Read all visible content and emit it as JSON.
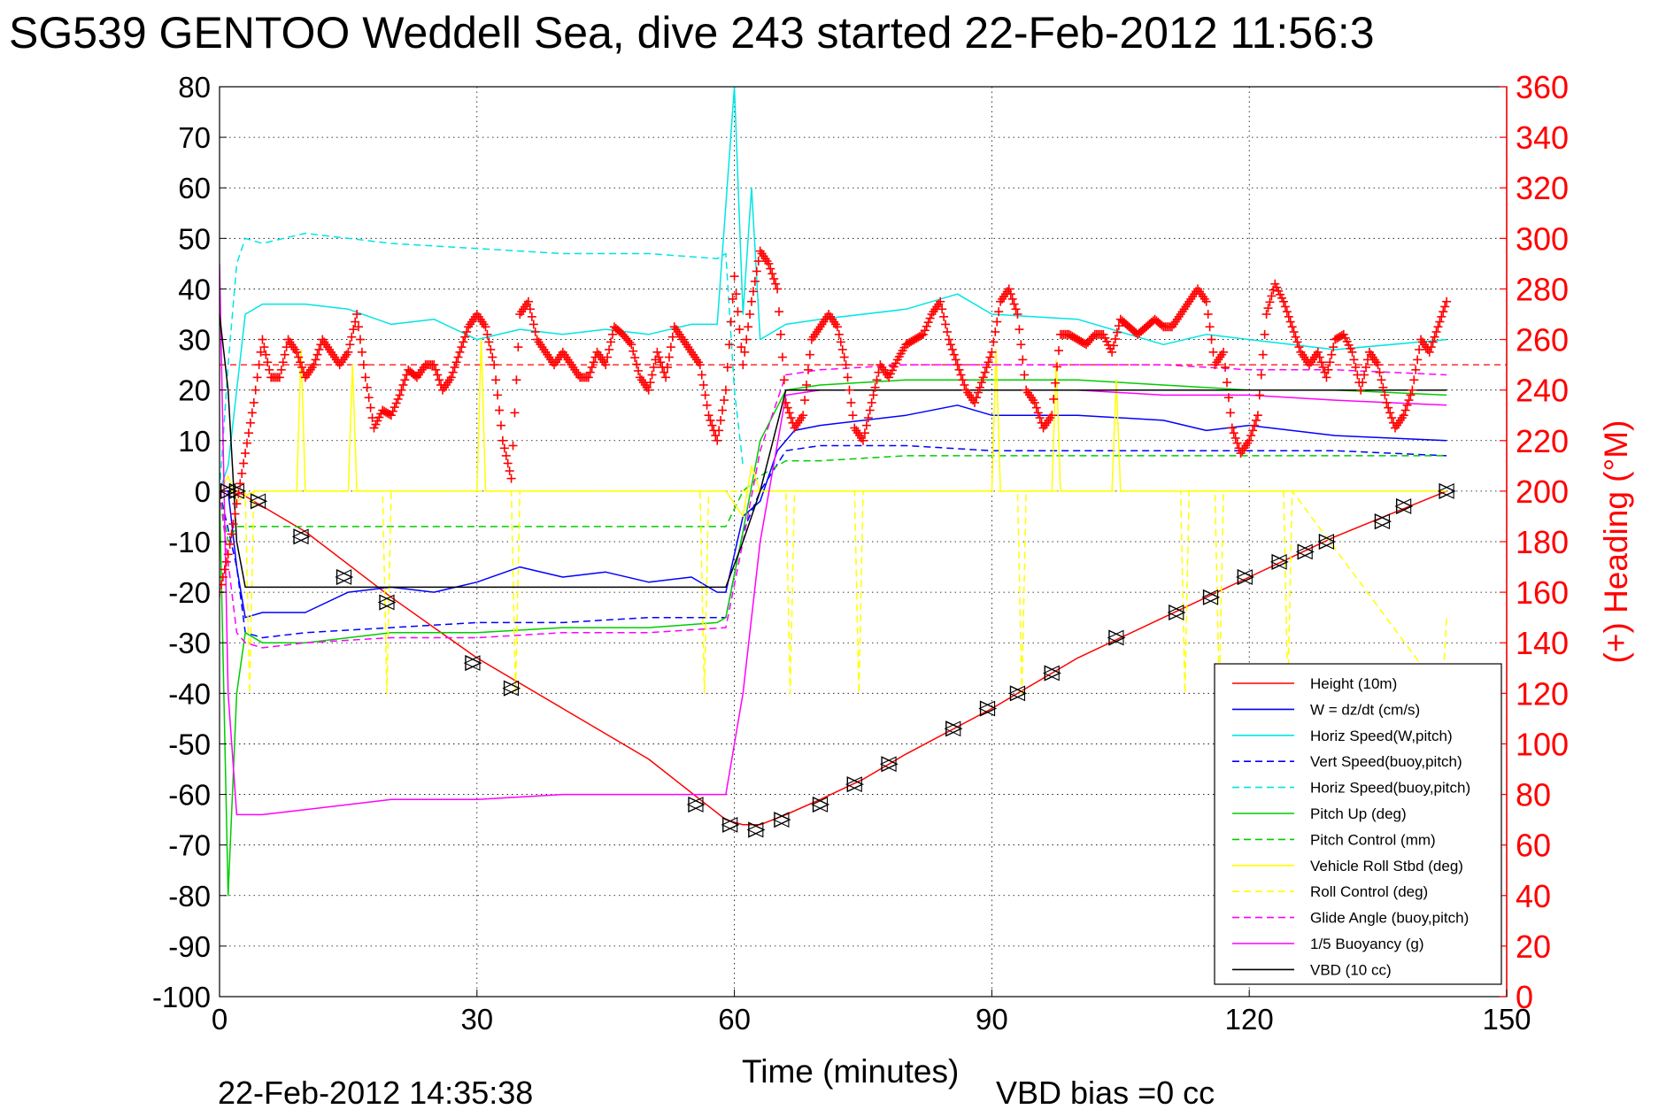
{
  "chart_data": {
    "type": "line",
    "title": "SG539 GENTOO Weddell Sea, dive 243 started 22-Feb-2012 11:56:3",
    "xlabel": "Time (minutes)",
    "ylabel_right": "(+) Heading (°M)",
    "xlim": [
      0,
      150
    ],
    "ylim": [
      -100,
      80
    ],
    "ylim_right": [
      0,
      360
    ],
    "x_ticks": [
      "0",
      "30",
      "60",
      "90",
      "120",
      "150"
    ],
    "y_ticks": [
      "80",
      "70",
      "60",
      "50",
      "40",
      "30",
      "20",
      "10",
      "0",
      "-10",
      "-20",
      "-30",
      "-40",
      "-50",
      "-60",
      "-70",
      "-80",
      "-90",
      "-100"
    ],
    "y_ticks_right": [
      "360",
      "340",
      "320",
      "300",
      "280",
      "260",
      "240",
      "220",
      "200",
      "180",
      "160",
      "140",
      "120",
      "100",
      "80",
      "60",
      "40",
      "20",
      "0"
    ],
    "grid": "on (dotted)",
    "legend_position": "bottom-right",
    "footer_left": "22-Feb-2012 14:35:38",
    "footer_right": "VBD bias =0 cc",
    "series": [
      {
        "name": "Height (10m)",
        "color": "#ff0000",
        "style": "solid",
        "x": [
          0,
          2,
          10,
          20,
          30,
          40,
          50,
          56,
          59,
          61,
          63,
          66,
          70,
          75,
          80,
          90,
          100,
          110,
          120,
          130,
          143
        ],
        "y": [
          0,
          0,
          -8,
          -21,
          -33,
          -43,
          -53,
          -61,
          -65,
          -66,
          -66,
          -64,
          -61,
          -57,
          -52,
          -43,
          -33,
          -25,
          -17,
          -9,
          0
        ]
      },
      {
        "name": "W = dz/dt (cm/s)",
        "color": "#0000ff",
        "style": "solid",
        "x": [
          0,
          1,
          2,
          3,
          5,
          10,
          15,
          20,
          25,
          30,
          35,
          40,
          45,
          50,
          55,
          58,
          59,
          61,
          63,
          65,
          67,
          70,
          80,
          86,
          90,
          100,
          110,
          115,
          120,
          130,
          143
        ],
        "y": [
          0,
          0,
          -15,
          -25,
          -24,
          -24,
          -20,
          -19,
          -20,
          -18,
          -15,
          -17,
          -16,
          -18,
          -17,
          -20,
          -20,
          -5,
          -2,
          8,
          12,
          13,
          15,
          17,
          15,
          15,
          14,
          12,
          13,
          11,
          10
        ]
      },
      {
        "name": "Horiz Speed(W,pitch)",
        "color": "#00e5e5",
        "style": "solid",
        "x": [
          0,
          1,
          2,
          3,
          5,
          10,
          15,
          20,
          25,
          30,
          35,
          40,
          45,
          50,
          55,
          58,
          60,
          61,
          62,
          63,
          66,
          70,
          80,
          86,
          90,
          100,
          110,
          115,
          120,
          130,
          143
        ],
        "y": [
          0,
          5,
          20,
          35,
          37,
          37,
          36,
          33,
          34,
          30,
          32,
          31,
          32,
          31,
          33,
          33,
          80,
          35,
          60,
          30,
          33,
          34,
          36,
          39,
          35,
          34,
          29,
          31,
          30,
          28,
          30
        ]
      },
      {
        "name": "Vert Speed(buoy,pitch)",
        "color": "#0000ff",
        "style": "dashed",
        "x": [
          0,
          2,
          3,
          5,
          10,
          20,
          30,
          40,
          50,
          59,
          61,
          63,
          66,
          70,
          80,
          90,
          100,
          110,
          120,
          130,
          143
        ],
        "y": [
          0,
          -15,
          -28,
          -29,
          -28,
          -27,
          -26,
          -26,
          -25,
          -25,
          -8,
          0,
          8,
          9,
          9,
          8,
          8,
          8,
          8,
          8,
          7
        ]
      },
      {
        "name": "Horiz Speed(buoy,pitch)",
        "color": "#00e5e5",
        "style": "dashed",
        "x": [
          0,
          1,
          2,
          3,
          5,
          10,
          20,
          30,
          40,
          50,
          58,
          59,
          60,
          61
        ],
        "y": [
          0,
          25,
          45,
          50,
          49,
          51,
          49,
          48,
          47,
          47,
          46,
          47,
          20,
          5
        ]
      },
      {
        "name": "Pitch Up (deg)",
        "color": "#00cc00",
        "style": "solid",
        "x": [
          0,
          1,
          2,
          3,
          5,
          10,
          20,
          30,
          40,
          50,
          58,
          59,
          61,
          63,
          66,
          70,
          80,
          90,
          100,
          110,
          120,
          130,
          143
        ],
        "y": [
          0,
          -80,
          -40,
          -28,
          -30,
          -30,
          -28,
          -28,
          -27,
          -27,
          -26,
          -25,
          -8,
          10,
          20,
          21,
          22,
          22,
          22,
          21,
          20,
          20,
          19
        ]
      },
      {
        "name": "Pitch Control (mm)",
        "color": "#00cc00",
        "style": "dashed",
        "x": [
          0,
          1,
          2,
          3,
          5,
          10,
          20,
          30,
          40,
          50,
          59,
          61,
          63,
          66,
          70,
          80,
          90,
          100,
          110,
          120,
          130,
          143
        ],
        "y": [
          0,
          -10,
          -7,
          -7,
          -7,
          -7,
          -7,
          -7,
          -7,
          -7,
          -7,
          0,
          3,
          6,
          6,
          7,
          7,
          7,
          7,
          7,
          7,
          7
        ]
      },
      {
        "name": "Vehicle Roll Stbd (deg)",
        "color": "#ffff00",
        "style": "solid",
        "x": [
          0,
          1,
          2,
          3,
          4,
          9,
          9.5,
          10,
          15,
          15.5,
          16,
          30,
          30.5,
          31,
          40,
          55,
          59,
          61,
          62,
          63,
          66,
          70,
          75,
          86,
          90,
          90.5,
          91,
          97,
          97.5,
          98,
          104,
          104.5,
          105,
          120,
          130,
          143
        ],
        "y": [
          0,
          3,
          -2,
          -1,
          0,
          0,
          28,
          0,
          0,
          25,
          0,
          0,
          30,
          0,
          0,
          0,
          0,
          -5,
          5,
          0,
          0,
          0,
          0,
          0,
          0,
          28,
          0,
          0,
          26,
          0,
          0,
          22,
          0,
          0,
          0,
          0
        ]
      },
      {
        "name": "Roll Control (deg)",
        "color": "#ffff00",
        "style": "dashed",
        "x": [
          0,
          3,
          3.5,
          4,
          19,
          19.5,
          20,
          34,
          34.5,
          35,
          56,
          56.5,
          57,
          66,
          66.5,
          67,
          74,
          74.5,
          75,
          93,
          93.5,
          94,
          112,
          112.5,
          113,
          116,
          116.5,
          117,
          124,
          124.5,
          125,
          142.5,
          143
        ],
        "y": [
          0,
          0,
          -40,
          0,
          0,
          -40,
          0,
          0,
          -40,
          0,
          0,
          -40,
          0,
          0,
          -40,
          0,
          0,
          -40,
          0,
          0,
          -40,
          0,
          0,
          -40,
          0,
          0,
          -40,
          0,
          0,
          -40,
          0,
          -40,
          -25
        ]
      },
      {
        "name": "Glide Angle (buoy,pitch)",
        "color": "#ff00ff",
        "style": "dashed",
        "x": [
          0,
          2,
          3,
          5,
          10,
          20,
          30,
          40,
          50,
          59,
          61,
          63,
          66,
          70,
          80,
          90,
          100,
          110,
          120,
          130,
          143
        ],
        "y": [
          0,
          -28,
          -30,
          -31,
          -30,
          -29,
          -29,
          -28,
          -28,
          -27,
          -10,
          8,
          23,
          24,
          25,
          25,
          25,
          25,
          24,
          24,
          23
        ]
      },
      {
        "name": "1/5 Buoyancy (g)",
        "color": "#ff00ff",
        "style": "solid",
        "x": [
          0,
          1,
          2,
          3,
          5,
          10,
          20,
          30,
          40,
          50,
          59,
          61,
          63,
          66,
          70,
          80,
          90,
          100,
          110,
          120,
          130,
          143
        ],
        "y": [
          45,
          -40,
          -64,
          -64,
          -64,
          -63,
          -61,
          -61,
          -60,
          -60,
          -60,
          -40,
          -10,
          19,
          20,
          20,
          20,
          20,
          19,
          19,
          18,
          17
        ]
      },
      {
        "name": "VBD (10 cc)",
        "color": "#000000",
        "style": "solid",
        "x": [
          0,
          1,
          2,
          3,
          5,
          10,
          20,
          30,
          40,
          50,
          59,
          61,
          63,
          66,
          70,
          80,
          90,
          100,
          110,
          120,
          130,
          143
        ],
        "y": [
          35,
          20,
          -10,
          -19,
          -19,
          -19,
          -19,
          -19,
          -19,
          -19,
          -19,
          -10,
          0,
          20,
          20,
          20,
          20,
          20,
          20,
          20,
          20,
          20
        ]
      }
    ],
    "heading_marker_style": "plus",
    "heading_marker_color": "#ff0000",
    "heading_reference": {
      "value": 250,
      "style": "dashed",
      "color": "#ff0000"
    },
    "heading": {
      "x": [
        0,
        1,
        2,
        3,
        4,
        5,
        6,
        7,
        8,
        9,
        10,
        11,
        12,
        13,
        14,
        15,
        16,
        17,
        18,
        19,
        20,
        21,
        22,
        23,
        24,
        25,
        26,
        27,
        28,
        29,
        30,
        31,
        32,
        33,
        34,
        35,
        36,
        37,
        38,
        39,
        40,
        41,
        42,
        43,
        44,
        45,
        46,
        47,
        48,
        49,
        50,
        51,
        52,
        53,
        54,
        55,
        56,
        57,
        58,
        59,
        60,
        61,
        62,
        63,
        64,
        65,
        66,
        67,
        68,
        69,
        70,
        71,
        72,
        73,
        74,
        75,
        76,
        77,
        78,
        79,
        80,
        81,
        82,
        83,
        84,
        85,
        86,
        87,
        88,
        89,
        90,
        91,
        92,
        93,
        94,
        95,
        96,
        97,
        98,
        99,
        100,
        101,
        102,
        103,
        104,
        105,
        106,
        107,
        108,
        109,
        110,
        111,
        112,
        113,
        114,
        115,
        116,
        117,
        118,
        119,
        120,
        121,
        122,
        123,
        124,
        125,
        126,
        127,
        128,
        129,
        130,
        131,
        132,
        133,
        134,
        135,
        136,
        137,
        138,
        139,
        140,
        141,
        142,
        143
      ],
      "y": [
        160,
        175,
        195,
        215,
        235,
        260,
        245,
        245,
        260,
        255,
        245,
        250,
        260,
        255,
        250,
        255,
        270,
        245,
        225,
        232,
        230,
        238,
        248,
        245,
        250,
        250,
        240,
        245,
        255,
        265,
        270,
        265,
        250,
        220,
        205,
        270,
        275,
        260,
        255,
        250,
        255,
        250,
        245,
        245,
        255,
        250,
        265,
        262,
        258,
        245,
        240,
        255,
        245,
        265,
        260,
        255,
        250,
        230,
        220,
        240,
        285,
        250,
        275,
        295,
        290,
        280,
        235,
        225,
        230,
        260,
        265,
        270,
        265,
        250,
        225,
        220,
        235,
        250,
        245,
        252,
        258,
        260,
        262,
        270,
        275,
        260,
        250,
        240,
        235,
        245,
        255,
        275,
        280,
        270,
        240,
        235,
        225,
        230,
        262,
        262,
        260,
        258,
        262,
        262,
        255,
        268,
        265,
        262,
        265,
        268,
        265,
        265,
        270,
        275,
        280,
        275,
        250,
        255,
        225,
        215,
        220,
        230,
        270,
        282,
        275,
        265,
        255,
        250,
        255,
        245,
        260,
        262,
        255,
        240,
        255,
        250,
        235,
        225,
        230,
        240,
        260,
        255,
        265,
        275
      ]
    },
    "diamond_markers": {
      "marker": "triangle",
      "x": [
        1,
        2,
        4.5,
        9.5,
        14.5,
        19.5,
        29.5,
        34,
        55.5,
        59.5,
        62.5,
        65.5,
        70,
        74,
        78,
        85.5,
        89.5,
        93,
        97,
        104.5,
        111.5,
        115.5,
        119.5,
        123.5,
        126.5,
        129,
        135.5,
        138,
        143
      ],
      "y": [
        0,
        0,
        -2,
        -9,
        -17,
        -22,
        -34,
        -39,
        -62,
        -66,
        -67,
        -65,
        -62,
        -58,
        -54,
        -47,
        -43,
        -40,
        -36,
        -29,
        -24,
        -21,
        -17,
        -14,
        -12,
        -10,
        -6,
        -3,
        0
      ]
    }
  }
}
